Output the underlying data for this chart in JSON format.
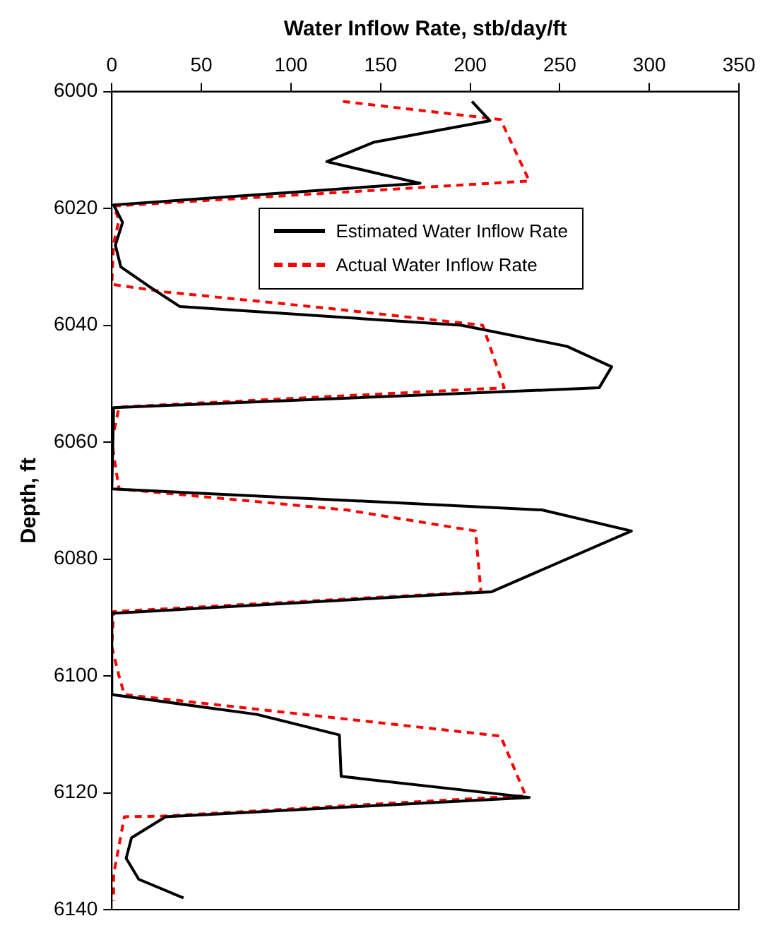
{
  "chart_data": {
    "type": "line",
    "orientation": "horizontal",
    "xlabel": "Water Inflow Rate, stb/day/ft",
    "ylabel": "Depth, ft",
    "xlim": [
      0,
      350
    ],
    "xticks": [
      0,
      50,
      100,
      150,
      200,
      250,
      300,
      350
    ],
    "ylim": [
      6140,
      6000
    ],
    "yticks": [
      6000,
      6020,
      6040,
      6060,
      6080,
      6100,
      6120,
      6140
    ],
    "grid": false,
    "legend": "top right",
    "marker": "none",
    "series": [
      {
        "name": "Estimated Water Inflow Rate",
        "color": "#000000",
        "line_style": "solid",
        "x": [
          6001.7,
          6005,
          6008.7,
          6012,
          6015.7,
          6019.4,
          6022.4,
          6026.3,
          6030,
          6033.4,
          6036.8,
          6040,
          6043.6,
          6047.1,
          6050.7,
          6054.1,
          6068,
          6071.6,
          6075.2,
          6085.6,
          6089.3,
          6103.2,
          6106.6,
          6110.1,
          6117.2,
          6120.8,
          6124.1,
          6127.7,
          6131.2,
          6134.8,
          6138
        ],
        "values": [
          201,
          211,
          146,
          120,
          172,
          1,
          6,
          2,
          5,
          21,
          38,
          195,
          254,
          279,
          272,
          1,
          0,
          240,
          290,
          212,
          0,
          0,
          81,
          127,
          128,
          233,
          30,
          11,
          8,
          15,
          40
        ]
      },
      {
        "name": "Actual Water Inflow Rate",
        "color": "#ff0000",
        "line_style": "dashed",
        "x": [
          6001.7,
          6004.8,
          6015.3,
          6019.6,
          6022,
          6026,
          6033,
          6034.3,
          6037,
          6040,
          6050.7,
          6054,
          6060,
          6068,
          6071.6,
          6075.2,
          6085.6,
          6089,
          6095,
          6100,
          6103.2,
          6110,
          6110.3,
          6120.5,
          6124,
          6124.1,
          6134,
          6138.5
        ],
        "values": [
          129,
          217,
          233,
          1,
          4,
          1,
          0,
          30,
          118,
          207,
          219,
          4,
          0,
          4,
          131,
          203,
          206,
          1,
          0,
          4,
          7,
          208,
          217,
          231,
          28,
          7,
          1,
          1
        ]
      }
    ]
  }
}
